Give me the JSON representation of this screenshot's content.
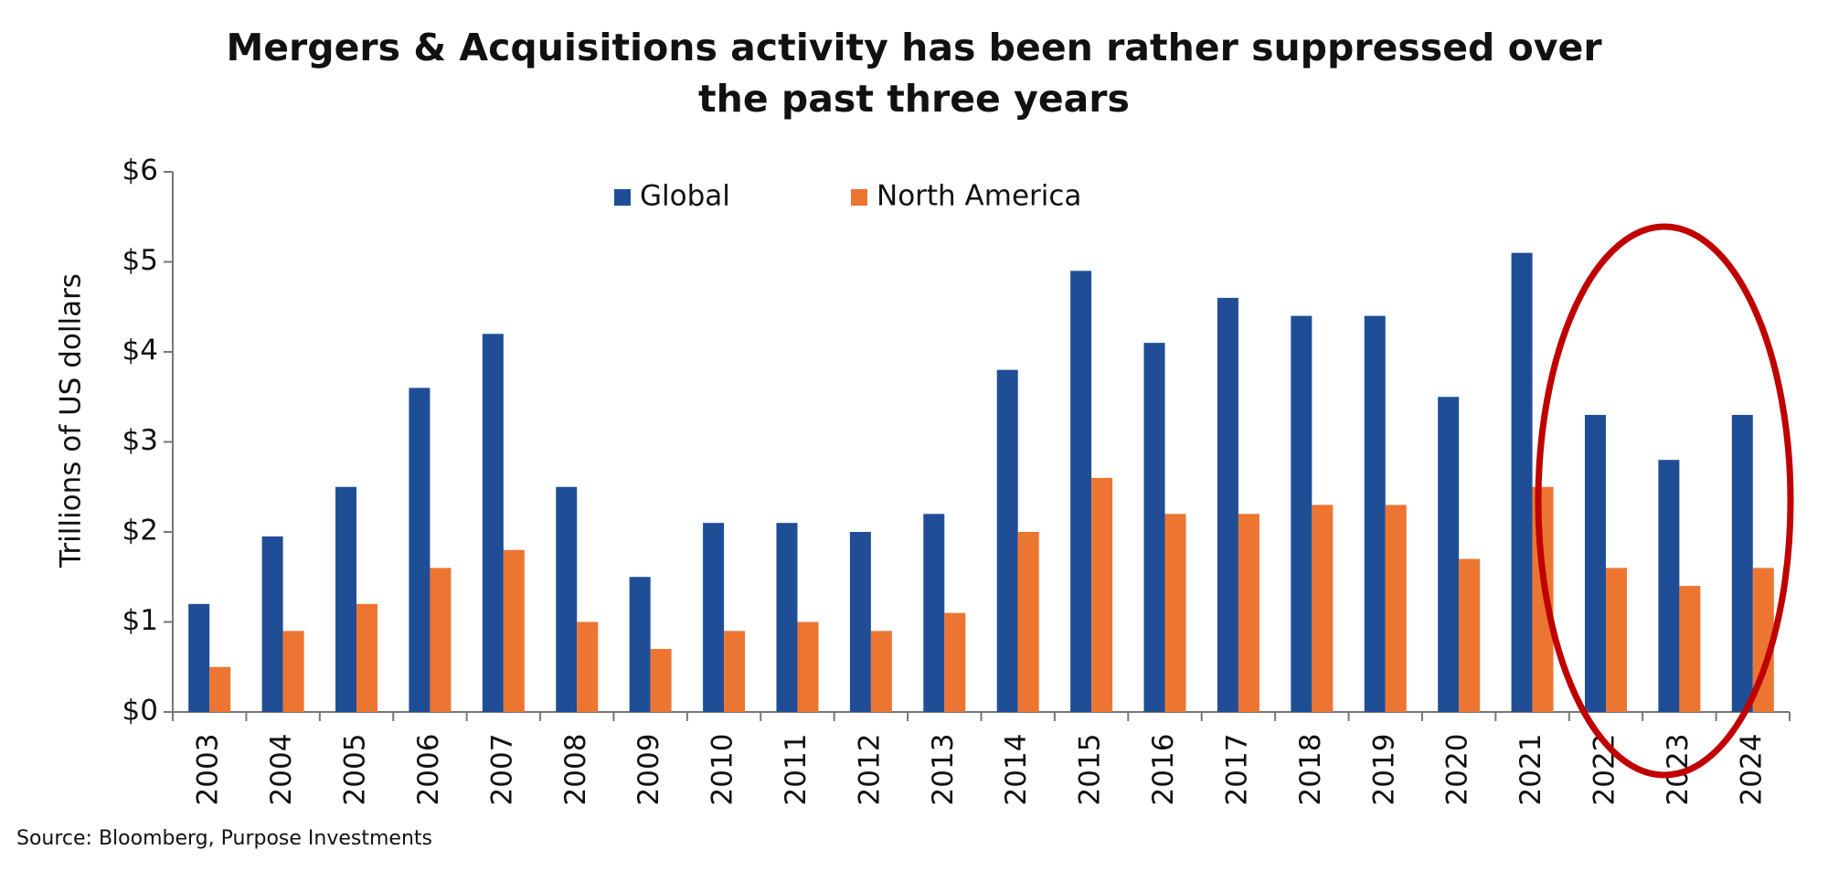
{
  "chart_data": {
    "type": "bar",
    "title": [
      "Mergers & Acquisitions activity has been rather suppressed over",
      "the past three years"
    ],
    "y_label": "Trillions of US dollars",
    "source": "Source: Bloomberg, Purpose Investments",
    "categories": [
      "2003",
      "2004",
      "2005",
      "2006",
      "2007",
      "2008",
      "2009",
      "2010",
      "2011",
      "2012",
      "2013",
      "2014",
      "2015",
      "2016",
      "2017",
      "2018",
      "2019",
      "2020",
      "2021",
      "2022",
      "2023",
      "2024"
    ],
    "series": [
      {
        "name": "Global",
        "color": "#1f4e96",
        "values": [
          1.2,
          1.95,
          2.5,
          3.6,
          4.2,
          2.5,
          1.5,
          2.1,
          2.1,
          2.0,
          2.2,
          3.8,
          4.9,
          4.1,
          4.6,
          4.4,
          4.4,
          3.5,
          5.1,
          3.3,
          2.8,
          3.3
        ]
      },
      {
        "name": "North America",
        "color": "#ed7532",
        "values": [
          0.5,
          0.9,
          1.2,
          1.6,
          1.8,
          1.0,
          0.7,
          0.9,
          1.0,
          0.9,
          1.1,
          2.0,
          2.6,
          2.2,
          2.2,
          2.3,
          2.3,
          1.7,
          2.5,
          1.6,
          1.4,
          1.6
        ]
      }
    ],
    "ylim": [
      0,
      6
    ],
    "yticks": [
      {
        "value": 0,
        "label": "$0"
      },
      {
        "value": 1,
        "label": "$1"
      },
      {
        "value": 2,
        "label": "$2"
      },
      {
        "value": 3,
        "label": "$3"
      },
      {
        "value": 4,
        "label": "$4"
      },
      {
        "value": 5,
        "label": "$5"
      },
      {
        "value": 6,
        "label": "$6"
      }
    ],
    "grid": false
  }
}
